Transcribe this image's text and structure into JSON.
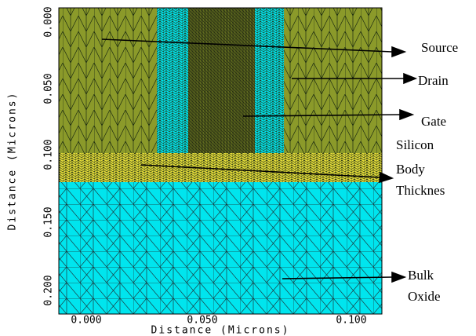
{
  "x_axis": {
    "label": "Distance (Microns)",
    "ticks": [
      "0.000",
      "0.050",
      "0.100"
    ]
  },
  "y_axis": {
    "label": "Distance (Microns)",
    "ticks": [
      "0.000",
      "0.050",
      "0.100",
      "0.150",
      "0.200"
    ]
  },
  "annotations": [
    {
      "lines": [
        "Source"
      ]
    },
    {
      "lines": [
        "Drain"
      ]
    },
    {
      "lines": [
        "Gate"
      ]
    },
    {
      "lines": [
        "Silicon",
        "Body",
        "Thicknes"
      ]
    },
    {
      "lines": [
        "Bulk",
        "Oxide"
      ]
    }
  ]
}
